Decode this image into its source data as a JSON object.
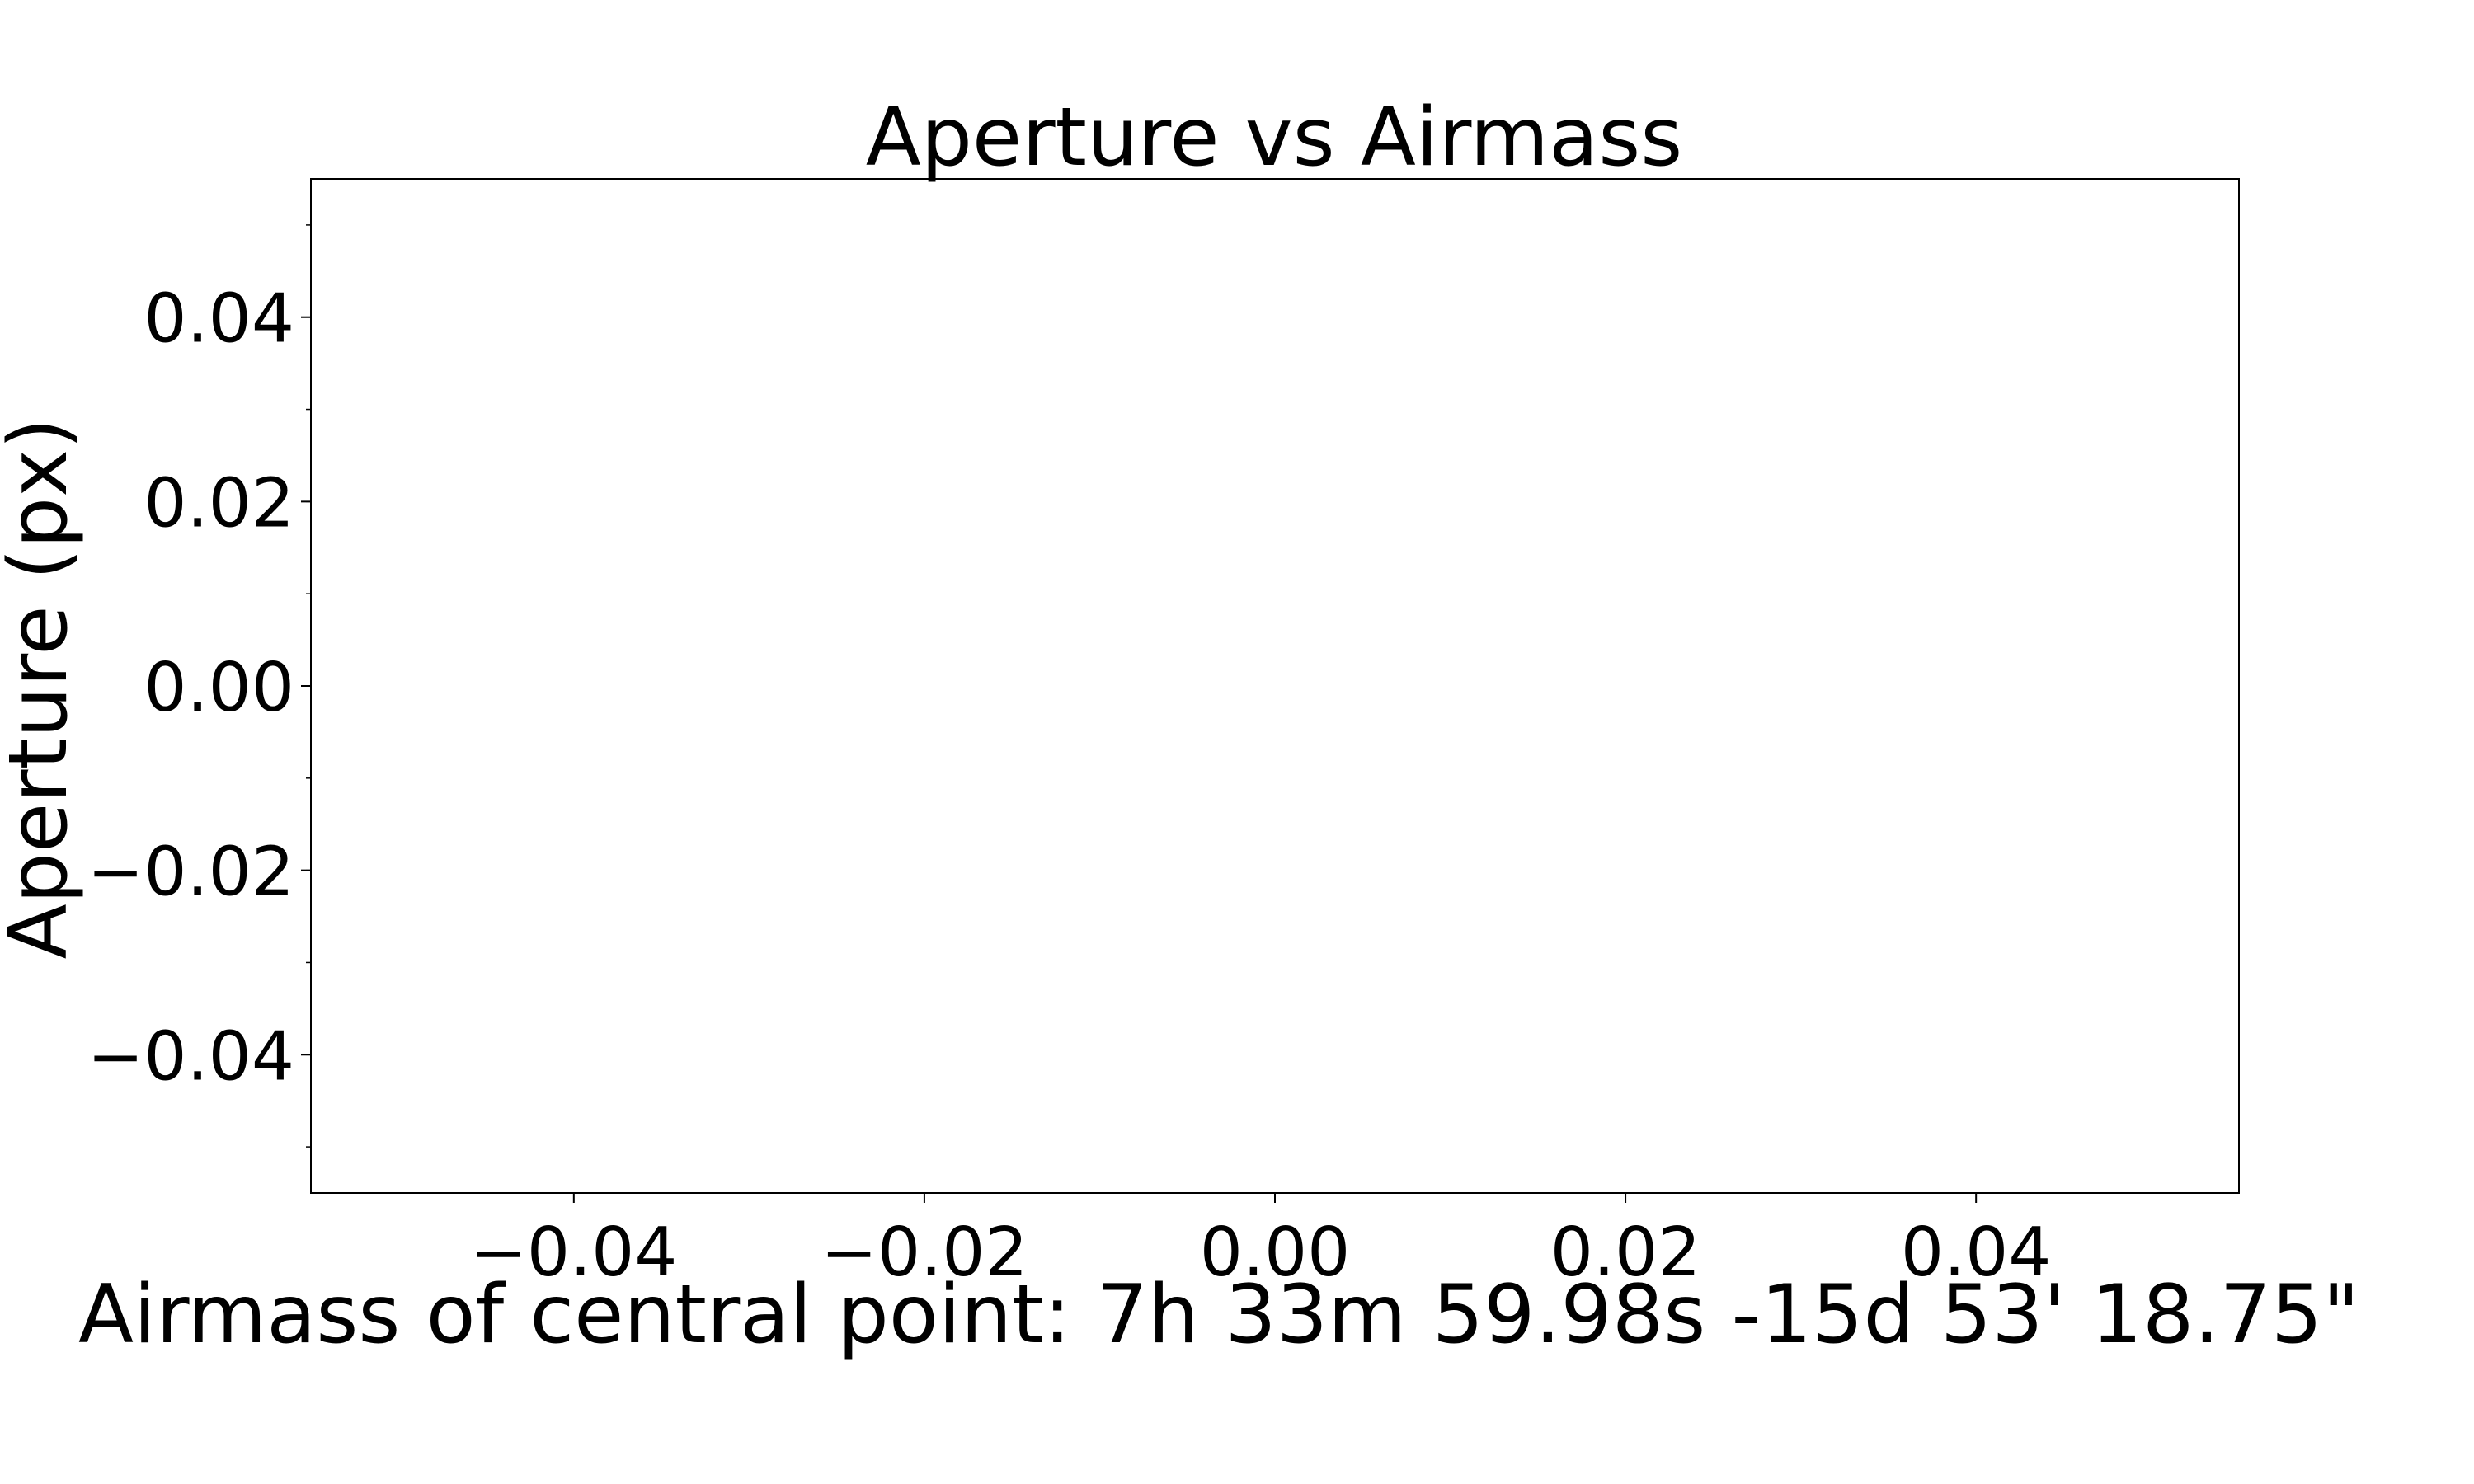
{
  "chart_data": {
    "type": "scatter",
    "title": "Aperture vs Airmass",
    "xlabel": "Airmass of central point:  7h 33m 59.98s  -15d 53' 18.75\"",
    "ylabel": "Aperture (px)",
    "xlim": [
      -0.055,
      0.055
    ],
    "ylim": [
      -0.055,
      0.055
    ],
    "xticks": [
      "−0.04",
      "−0.02",
      "0.00",
      "0.02",
      "0.04"
    ],
    "xtick_values": [
      -0.04,
      -0.02,
      0.0,
      0.02,
      0.04
    ],
    "yticks": [
      "0.04",
      "0.02",
      "0.00",
      "−0.02",
      "−0.04"
    ],
    "ytick_values": [
      0.04,
      0.02,
      0.0,
      -0.02,
      -0.04
    ],
    "minor_ytick_step": 0.01,
    "grid": false,
    "series": [
      {
        "x": [],
        "y": []
      }
    ]
  }
}
